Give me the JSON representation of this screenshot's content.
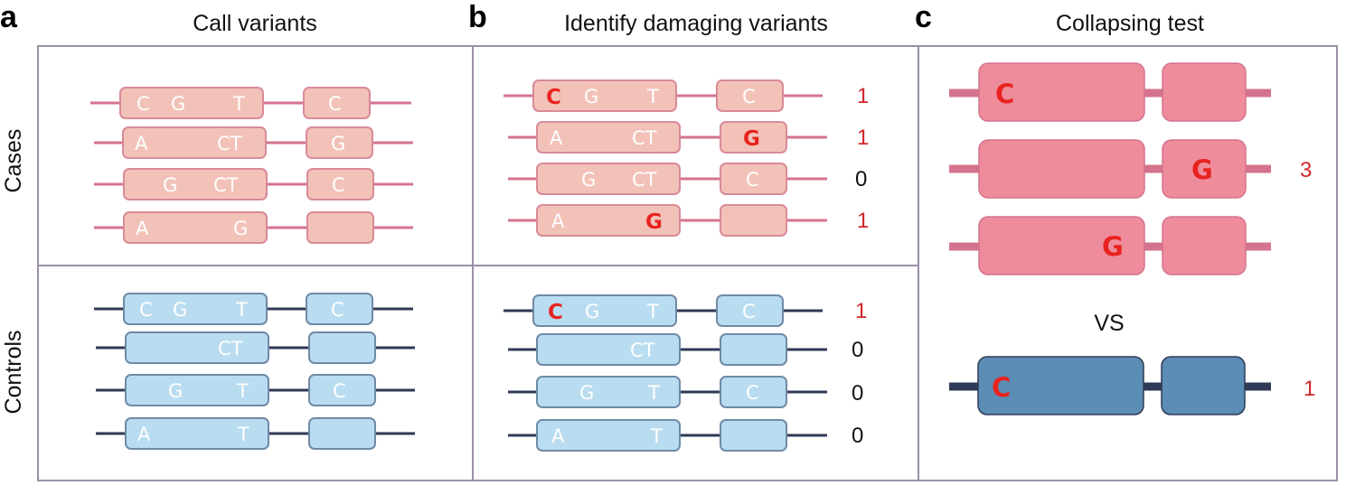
{
  "panels": {
    "a": {
      "letter": "a",
      "title": "Call variants"
    },
    "b": {
      "letter": "b",
      "title": "Identify damaging variants"
    },
    "c": {
      "letter": "c",
      "title": "Collapsing test"
    }
  },
  "row_labels": {
    "cases": "Cases",
    "controls": "Controls"
  },
  "colors": {
    "case_line": "#d4738d",
    "case_exon_fill": "#f2c2b8",
    "case_exon_stroke": "#d98a98",
    "control_line": "#2f3a56",
    "control_exon_fill": "#b9dcf0",
    "control_exon_stroke": "#6f8aa6",
    "collapsed_case_fill": "#ef8c9c",
    "collapsed_case_line": "#d4738d",
    "collapsed_control_fill": "#5b8db5",
    "collapsed_control_line": "#2f3a56",
    "damaging_base": "#e8231f",
    "count_damaging": "#d1272a",
    "count_zero": "#111111",
    "border": "#9c8fa6"
  },
  "call_variants": {
    "cases": [
      [
        "C",
        "G",
        "T",
        "C"
      ],
      [
        "A",
        "CT",
        "G"
      ],
      [
        "G",
        "CT",
        "C"
      ],
      [
        "A",
        "G"
      ]
    ],
    "controls": [
      [
        "C",
        "G",
        "T",
        "C"
      ],
      [
        "CT"
      ],
      [
        "G",
        "T",
        "C"
      ],
      [
        "A",
        "T"
      ]
    ]
  },
  "damaging": {
    "cases": [
      {
        "damaging_base": "C",
        "other_bases": [
          "G",
          "T",
          "C"
        ],
        "count": "1"
      },
      {
        "damaging_base": "G",
        "other_bases": [
          "A",
          "CT"
        ],
        "count": "1"
      },
      {
        "damaging_base": "",
        "other_bases": [
          "G",
          "CT",
          "C"
        ],
        "count": "0"
      },
      {
        "damaging_base": "G",
        "other_bases": [
          "A"
        ],
        "count": "1"
      }
    ],
    "controls": [
      {
        "damaging_base": "C",
        "other_bases": [
          "G",
          "T",
          "C"
        ],
        "count": "1"
      },
      {
        "damaging_base": "",
        "other_bases": [
          "CT"
        ],
        "count": "0"
      },
      {
        "damaging_base": "",
        "other_bases": [
          "G",
          "T",
          "C"
        ],
        "count": "0"
      },
      {
        "damaging_base": "",
        "other_bases": [
          "A",
          "T"
        ],
        "count": "0"
      }
    ]
  },
  "collapsing": {
    "cases_genes": [
      {
        "damaging_base": "C"
      },
      {
        "damaging_base": "G"
      },
      {
        "damaging_base": "G"
      }
    ],
    "cases_count": "3",
    "vs": "VS",
    "control_gene": {
      "damaging_base": "C"
    },
    "control_count": "1"
  }
}
